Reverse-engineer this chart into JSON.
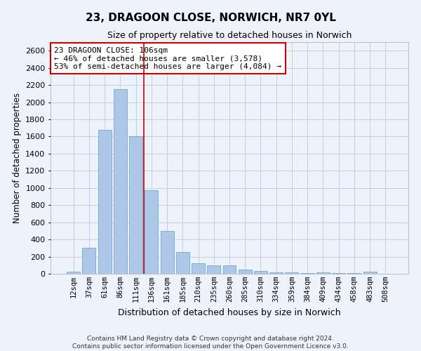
{
  "title1": "23, DRAGOON CLOSE, NORWICH, NR7 0YL",
  "title2": "Size of property relative to detached houses in Norwich",
  "xlabel": "Distribution of detached houses by size in Norwich",
  "ylabel": "Number of detached properties",
  "categories": [
    "12sqm",
    "37sqm",
    "61sqm",
    "86sqm",
    "111sqm",
    "136sqm",
    "161sqm",
    "185sqm",
    "210sqm",
    "235sqm",
    "260sqm",
    "285sqm",
    "310sqm",
    "334sqm",
    "359sqm",
    "384sqm",
    "409sqm",
    "434sqm",
    "458sqm",
    "483sqm",
    "508sqm"
  ],
  "values": [
    25,
    300,
    1675,
    2150,
    1600,
    970,
    500,
    250,
    125,
    100,
    100,
    50,
    30,
    20,
    20,
    10,
    20,
    10,
    5,
    25,
    0
  ],
  "bar_color": "#aec6e8",
  "bar_edge_color": "#5a9fd4",
  "grid_color": "#c0d0e8",
  "background_color": "#eef2fb",
  "vline_color": "#cc0000",
  "vline_x": 4.5,
  "annotation_text": "23 DRAGOON CLOSE: 106sqm\n← 46% of detached houses are smaller (3,578)\n53% of semi-detached houses are larger (4,084) →",
  "annotation_box_color": "#ffffff",
  "annotation_box_edge": "#cc0000",
  "ylim": [
    0,
    2700
  ],
  "yticks": [
    0,
    200,
    400,
    600,
    800,
    1000,
    1200,
    1400,
    1600,
    1800,
    2000,
    2200,
    2400,
    2600
  ],
  "footer1": "Contains HM Land Registry data © Crown copyright and database right 2024.",
  "footer2": "Contains public sector information licensed under the Open Government Licence v3.0."
}
